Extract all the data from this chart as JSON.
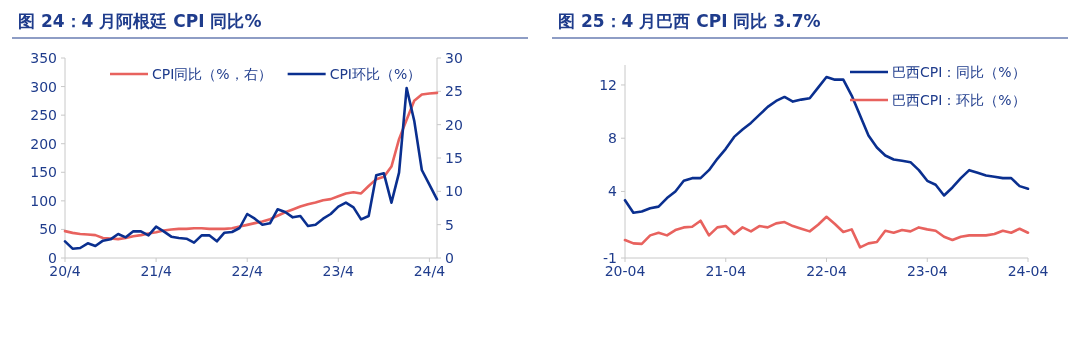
{
  "chart_data": [
    {
      "type": "line",
      "title": "图 24：4 月阿根廷 CPI 同比%",
      "legend": "top",
      "grid": false,
      "line_style": "solid",
      "marker": "none",
      "categories": [
        "20/4",
        null,
        null,
        null,
        null,
        null,
        null,
        null,
        null,
        null,
        null,
        null,
        "21/4",
        null,
        null,
        null,
        null,
        null,
        null,
        null,
        null,
        null,
        null,
        null,
        "22/4",
        null,
        null,
        null,
        null,
        null,
        null,
        null,
        null,
        null,
        null,
        null,
        "23/4",
        null,
        null,
        null,
        null,
        null,
        null,
        null,
        null,
        null,
        null,
        null,
        "24/4",
        null
      ],
      "ylim": [
        0,
        350
      ],
      "yticks": [
        0,
        50,
        100,
        150,
        200,
        250,
        300,
        350
      ],
      "y2lim": [
        0,
        30
      ],
      "y2ticks": [
        0,
        5,
        10,
        15,
        20,
        25,
        30
      ],
      "series": [
        {
          "name": "CPI同比（%，右）",
          "color": "#e8625e",
          "axis": "y",
          "values": [
            47,
            44,
            42,
            41,
            40,
            35,
            34,
            33,
            35,
            38,
            40,
            43,
            45,
            48,
            50,
            51,
            51,
            52,
            52,
            51,
            51,
            51,
            52,
            55,
            58,
            61,
            64,
            68,
            74,
            80,
            85,
            90,
            94,
            97,
            101,
            103,
            108,
            113,
            115,
            113,
            126,
            138,
            142,
            160,
            208,
            242,
            275,
            286,
            288,
            289
          ]
        },
        {
          "name": "CPI环比（%）",
          "color": "#0a2f8f",
          "axis": "y2",
          "values": [
            2.5,
            1.4,
            1.5,
            2.2,
            1.8,
            2.6,
            2.8,
            3.6,
            3.1,
            4.0,
            4.0,
            3.4,
            4.7,
            4.0,
            3.2,
            3.0,
            2.9,
            2.3,
            3.4,
            3.4,
            2.5,
            3.8,
            3.9,
            4.5,
            6.6,
            5.9,
            5.0,
            5.2,
            7.3,
            6.9,
            6.1,
            6.3,
            4.8,
            5.0,
            5.9,
            6.6,
            7.7,
            8.3,
            7.6,
            5.8,
            6.3,
            12.4,
            12.7,
            8.3,
            12.8,
            25.5,
            20.6,
            13.2,
            11.0,
            8.8
          ]
        }
      ]
    },
    {
      "type": "line",
      "title": "图 25：4 月巴西 CPI 同比 3.7%",
      "legend": "top right",
      "grid": false,
      "line_style": "solid",
      "marker": "none",
      "categories": [
        "20-04",
        null,
        null,
        null,
        null,
        null,
        null,
        null,
        null,
        null,
        null,
        null,
        "21-04",
        null,
        null,
        null,
        null,
        null,
        null,
        null,
        null,
        null,
        null,
        null,
        "22-04",
        null,
        null,
        null,
        null,
        null,
        null,
        null,
        null,
        null,
        null,
        null,
        "23-04",
        null,
        null,
        null,
        null,
        null,
        null,
        null,
        null,
        null,
        null,
        null,
        "24-04"
      ],
      "ylim": [
        -1,
        13.5
      ],
      "yticks": [
        -1,
        4,
        8,
        12
      ],
      "series": [
        {
          "name": "巴西CPI：同比（%）",
          "color": "#0a2f8f",
          "values": [
            3.34,
            2.4,
            2.5,
            2.74,
            2.86,
            3.5,
            4.0,
            4.8,
            5.0,
            5.0,
            5.6,
            6.45,
            7.2,
            8.1,
            8.65,
            9.15,
            9.75,
            10.35,
            10.8,
            11.1,
            10.75,
            10.9,
            11.0,
            11.8,
            12.6,
            12.4,
            12.4,
            11.2,
            9.7,
            8.2,
            7.3,
            6.7,
            6.4,
            6.3,
            6.2,
            5.6,
            4.8,
            4.5,
            3.7,
            4.3,
            5.0,
            5.6,
            5.4,
            5.2,
            5.1,
            5.0,
            5.0,
            4.4,
            4.2
          ]
        },
        {
          "name": "巴西CPI：环比（%）",
          "color": "#e8625e",
          "values": [
            0.35,
            0.1,
            0.06,
            0.7,
            0.9,
            0.7,
            1.1,
            1.3,
            1.35,
            1.8,
            0.7,
            1.3,
            1.4,
            0.8,
            1.3,
            1.0,
            1.4,
            1.3,
            1.6,
            1.7,
            1.4,
            1.2,
            1.0,
            1.5,
            2.1,
            1.55,
            0.95,
            1.15,
            -0.2,
            0.1,
            0.2,
            1.05,
            0.9,
            1.1,
            1.0,
            1.3,
            1.15,
            1.05,
            0.6,
            0.35,
            0.6,
            0.7,
            0.7,
            0.7,
            0.8,
            1.05,
            0.9,
            1.2,
            0.9
          ]
        }
      ]
    }
  ]
}
